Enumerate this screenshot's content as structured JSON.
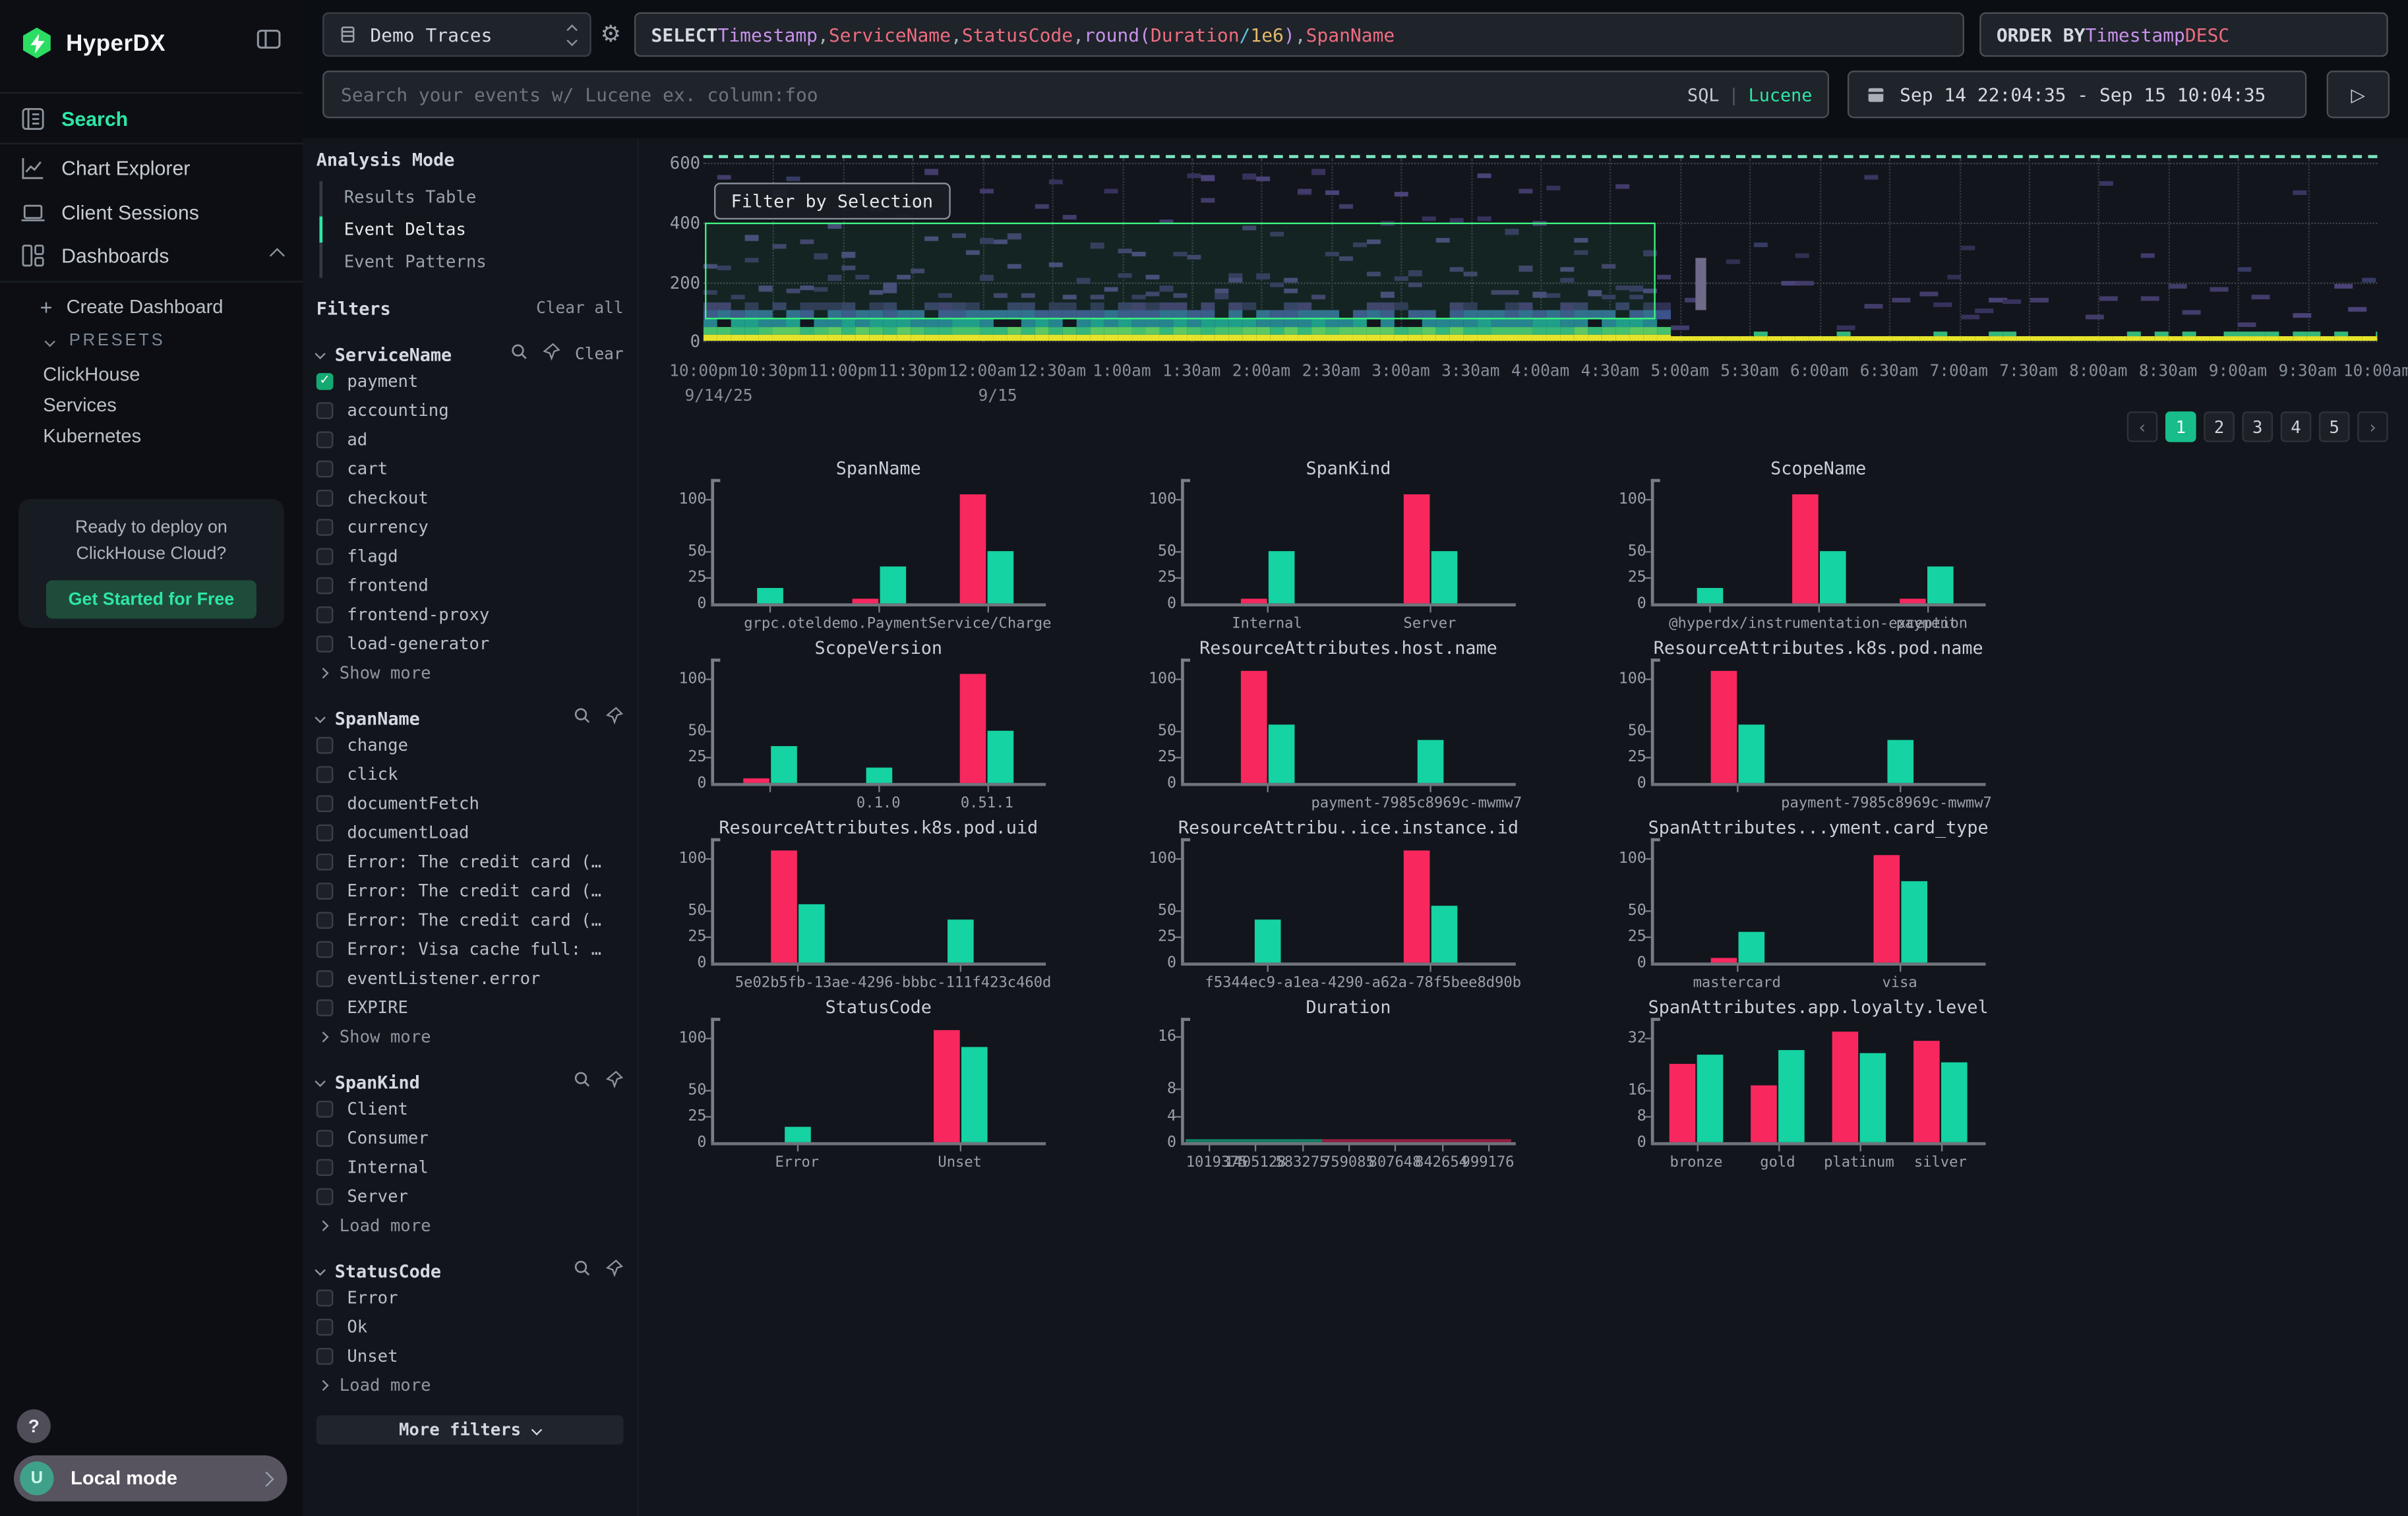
{
  "colors": {
    "accent_green": "#2EE6A6",
    "bar_pink": "#F8285F",
    "bar_green": "#15D3A2",
    "selection_green": "#3DF57E",
    "page_active": "#18BD8B",
    "checkbox_green": "#16A873",
    "heatmap_yellow": "#E6E32B",
    "heatmap_greens": [
      "#48C16C",
      "#35B779",
      "#5EC962"
    ],
    "heatmap_teals": [
      "#1F9E89",
      "#25848E"
    ],
    "heatmap_blues": [
      "#31688E",
      "#3B528B"
    ],
    "heatmap_navies": [
      "#2F3152",
      "#363B63",
      "#413A6B"
    ],
    "heatmap_purples": [
      "#423C6A",
      "#4A4378",
      "#37325C"
    ]
  },
  "sidebar": {
    "logo": "HyperDX",
    "nav": [
      {
        "label": "Search",
        "active": true
      },
      {
        "label": "Chart Explorer"
      },
      {
        "label": "Client Sessions"
      },
      {
        "label": "Dashboards",
        "expanded": true
      }
    ],
    "create_dashboard": "Create Dashboard",
    "create_plus": "+",
    "presets_label": "PRESETS",
    "presets": [
      "ClickHouse",
      "Services",
      "Kubernetes"
    ],
    "promo": {
      "line1": "Ready to deploy on",
      "line2": "ClickHouse Cloud?",
      "cta": "Get Started for Free"
    },
    "help": "?",
    "footer": {
      "avatar": "U",
      "label": "Local mode"
    }
  },
  "topbar": {
    "source": "Demo Traces",
    "query": [
      {
        "t": "SELECT ",
        "c": "kw"
      },
      {
        "t": "Timestamp",
        "c": "type"
      },
      {
        "t": ", ",
        "c": "p"
      },
      {
        "t": "ServiceName",
        "c": "field"
      },
      {
        "t": ", ",
        "c": "p"
      },
      {
        "t": "StatusCode",
        "c": "field"
      },
      {
        "t": ", ",
        "c": "p"
      },
      {
        "t": "round(",
        "c": "type"
      },
      {
        "t": "Duration",
        "c": "field"
      },
      {
        "t": " / ",
        "c": "op"
      },
      {
        "t": "1e6",
        "c": "num"
      },
      {
        "t": ")",
        "c": "type"
      },
      {
        "t": ", ",
        "c": "p"
      },
      {
        "t": "SpanName",
        "c": "field"
      }
    ],
    "order_by": [
      {
        "t": "ORDER BY ",
        "c": "kw"
      },
      {
        "t": "Timestamp ",
        "c": "type"
      },
      {
        "t": "DESC",
        "c": "field"
      }
    ],
    "search_placeholder": "Search your events w/ Lucene ex. column:foo",
    "lang": {
      "sql": "SQL",
      "divider": "|",
      "lucene": "Lucene"
    },
    "date_range": "Sep 14 22:04:35 - Sep 15 10:04:35",
    "play": "▷"
  },
  "analysis_mode": {
    "title": "Analysis Mode",
    "modes": [
      {
        "label": "Results Table",
        "active": false
      },
      {
        "label": "Event Deltas",
        "active": true
      },
      {
        "label": "Event Patterns",
        "active": false
      }
    ]
  },
  "filters": {
    "title": "Filters",
    "clear_all": "Clear all",
    "more_filters": "More filters",
    "groups": [
      {
        "name": "ServiceName",
        "clear_label": "Clear",
        "more": "Show more",
        "options": [
          {
            "label": "payment",
            "checked": true
          },
          {
            "label": "accounting"
          },
          {
            "label": "ad"
          },
          {
            "label": "cart"
          },
          {
            "label": "checkout"
          },
          {
            "label": "currency"
          },
          {
            "label": "flagd"
          },
          {
            "label": "frontend"
          },
          {
            "label": "frontend-proxy"
          },
          {
            "label": "load-generator"
          }
        ]
      },
      {
        "name": "SpanName",
        "more": "Show more",
        "options": [
          {
            "label": "change"
          },
          {
            "label": "click"
          },
          {
            "label": "documentFetch"
          },
          {
            "label": "documentLoad"
          },
          {
            "label": "Error: The credit card (…"
          },
          {
            "label": "Error: The credit card (…"
          },
          {
            "label": "Error: The credit card (…"
          },
          {
            "label": "Error: Visa cache full: …"
          },
          {
            "label": "eventListener.error"
          },
          {
            "label": "EXPIRE"
          }
        ]
      },
      {
        "name": "SpanKind",
        "more": "Load more",
        "options": [
          {
            "label": "Client"
          },
          {
            "label": "Consumer"
          },
          {
            "label": "Internal"
          },
          {
            "label": "Server"
          }
        ]
      },
      {
        "name": "StatusCode",
        "more": "Load more",
        "options": [
          {
            "label": "Error"
          },
          {
            "label": "Ok"
          },
          {
            "label": "Unset"
          }
        ]
      }
    ]
  },
  "pagination": {
    "prev": "‹",
    "pages": [
      "1",
      "2",
      "3",
      "4",
      "5"
    ],
    "active": "1",
    "next": "›"
  },
  "chart_data": [
    {
      "type": "heatmap",
      "title": "",
      "filter_button": "Filter by Selection",
      "yticks": [
        600,
        400,
        200,
        0
      ],
      "xticks": [
        "10:00pm",
        "10:30pm",
        "11:00pm",
        "11:30pm",
        "12:00am",
        "12:30am",
        "1:00am",
        "1:30am",
        "2:00am",
        "2:30am",
        "3:00am",
        "3:30am",
        "4:00am",
        "4:30am",
        "5:00am",
        "5:30am",
        "6:00am",
        "6:30am",
        "7:00am",
        "7:30am",
        "8:00am",
        "8:30am",
        "9:00am",
        "9:30am",
        "10:00am"
      ],
      "x_dates": [
        {
          "label": "9/14/25",
          "tick": 0
        },
        {
          "label": "9/15",
          "tick": 4
        }
      ],
      "ylim": [
        0,
        600
      ],
      "selection": {
        "x_from_label": "10:00pm",
        "x_to_between": [
          "4:30am",
          "5:00am"
        ],
        "y_from": 75,
        "y_to": 400
      },
      "description": "Event deltas duration heatmap: dense yellow/green/teal band near 0, scattered purple cells up to ~500; data dense left of ~4:50am (selected), sparse after"
    },
    {
      "type": "bar",
      "title": "SpanName",
      "yticks": [
        100,
        50,
        25,
        0
      ],
      "ymax": 112,
      "groups": [
        {
          "label": "",
          "bars": [
            {
              "series": "green",
              "value": 15
            }
          ]
        },
        {
          "label": "",
          "bars": [
            {
              "series": "pink",
              "value": 4
            },
            {
              "series": "green",
              "value": 35
            }
          ]
        },
        {
          "label": "grpc.oteldemo.PaymentService/Charge",
          "bars": [
            {
              "series": "pink",
              "value": 105
            },
            {
              "series": "green",
              "value": 50
            }
          ]
        }
      ]
    },
    {
      "type": "bar",
      "title": "SpanKind",
      "yticks": [
        100,
        50,
        25,
        0
      ],
      "ymax": 112,
      "groups": [
        {
          "label": "Internal",
          "bars": [
            {
              "series": "pink",
              "value": 4
            },
            {
              "series": "green",
              "value": 50
            }
          ]
        },
        {
          "label": "Server",
          "bars": [
            {
              "series": "pink",
              "value": 105
            },
            {
              "series": "green",
              "value": 50
            }
          ]
        }
      ]
    },
    {
      "type": "bar",
      "title": "ScopeName",
      "yticks": [
        100,
        50,
        25,
        0
      ],
      "ymax": 112,
      "groups": [
        {
          "label": "",
          "bars": [
            {
              "series": "green",
              "value": 15
            }
          ]
        },
        {
          "label": "@hyperdx/instrumentation-exception",
          "bars": [
            {
              "series": "pink",
              "value": 105
            },
            {
              "series": "green",
              "value": 50
            }
          ]
        },
        {
          "label": "payment",
          "bars": [
            {
              "series": "pink",
              "value": 4
            },
            {
              "series": "green",
              "value": 35
            }
          ]
        }
      ]
    },
    {
      "type": "bar",
      "title": "ScopeVersion",
      "yticks": [
        100,
        50,
        25,
        0
      ],
      "ymax": 112,
      "groups": [
        {
          "label": "",
          "bars": [
            {
              "series": "pink",
              "value": 4
            },
            {
              "series": "green",
              "value": 35
            }
          ]
        },
        {
          "label": "0.1.0",
          "bars": [
            {
              "series": "green",
              "value": 15
            }
          ]
        },
        {
          "label": "0.51.1",
          "bars": [
            {
              "series": "pink",
              "value": 105
            },
            {
              "series": "green",
              "value": 50
            }
          ]
        }
      ]
    },
    {
      "type": "bar",
      "title": "ResourceAttributes.host.name",
      "yticks": [
        100,
        50,
        25,
        0
      ],
      "ymax": 112,
      "groups": [
        {
          "label": "",
          "bars": [
            {
              "series": "pink",
              "value": 107
            },
            {
              "series": "green",
              "value": 56
            }
          ]
        },
        {
          "label": "payment-7985c8969c-mwmw7",
          "bars": [
            {
              "series": "green",
              "value": 42
            }
          ]
        }
      ]
    },
    {
      "type": "bar",
      "title": "ResourceAttributes.k8s.pod.name",
      "yticks": [
        100,
        50,
        25,
        0
      ],
      "ymax": 112,
      "groups": [
        {
          "label": "",
          "bars": [
            {
              "series": "pink",
              "value": 107
            },
            {
              "series": "green",
              "value": 56
            }
          ]
        },
        {
          "label": "payment-7985c8969c-mwmw7",
          "bars": [
            {
              "series": "green",
              "value": 42
            }
          ]
        }
      ]
    },
    {
      "type": "bar",
      "title": "ResourceAttributes.k8s.pod.uid",
      "yticks": [
        100,
        50,
        25,
        0
      ],
      "ymax": 112,
      "groups": [
        {
          "label": "",
          "bars": [
            {
              "series": "pink",
              "value": 107
            },
            {
              "series": "green",
              "value": 56
            }
          ]
        },
        {
          "label": "5e02b5fb-13ae-4296-bbbc-111f423c460d",
          "bars": [
            {
              "series": "green",
              "value": 42
            }
          ]
        }
      ]
    },
    {
      "type": "bar",
      "title": "ResourceAttribu..ice.instance.id",
      "yticks": [
        100,
        50,
        25,
        0
      ],
      "ymax": 112,
      "groups": [
        {
          "label": "",
          "bars": [
            {
              "series": "green",
              "value": 42
            }
          ]
        },
        {
          "label": "f5344ec9-a1ea-4290-a62a-78f5bee8d90b",
          "bars": [
            {
              "series": "pink",
              "value": 107
            },
            {
              "series": "green",
              "value": 55
            }
          ]
        }
      ]
    },
    {
      "type": "bar",
      "title": "SpanAttributes...yment.card_type",
      "yticks": [
        100,
        50,
        25,
        0
      ],
      "ymax": 112,
      "groups": [
        {
          "label": "mastercard",
          "bars": [
            {
              "series": "pink",
              "value": 4
            },
            {
              "series": "green",
              "value": 30
            }
          ]
        },
        {
          "label": "visa",
          "bars": [
            {
              "series": "pink",
              "value": 103
            },
            {
              "series": "green",
              "value": 78
            }
          ]
        }
      ]
    },
    {
      "type": "bar",
      "title": "StatusCode",
      "yticks": [
        100,
        50,
        25,
        0
      ],
      "ymax": 112,
      "groups": [
        {
          "label": "Error",
          "bars": [
            {
              "series": "green",
              "value": 15
            }
          ]
        },
        {
          "label": "Unset",
          "bars": [
            {
              "series": "pink",
              "value": 107
            },
            {
              "series": "green",
              "value": 92
            }
          ]
        }
      ]
    },
    {
      "type": "bar",
      "title": "Duration",
      "yticks": [
        16,
        8,
        4,
        0
      ],
      "ymax": 17.5,
      "groups": [
        {
          "label": "1019375",
          "bars": []
        },
        {
          "label": "1405128",
          "bars": []
        },
        {
          "label": "583275",
          "bars": []
        },
        {
          "label": "759085",
          "bars": []
        },
        {
          "label": "807648",
          "bars": []
        },
        {
          "label": "842654",
          "bars": []
        },
        {
          "label": "999176",
          "bars": []
        }
      ],
      "baseline_strip": [
        {
          "series": "green",
          "frac": 0.42
        },
        {
          "series": "pink",
          "frac": 0.58
        }
      ]
    },
    {
      "type": "bar",
      "title": "SpanAttributes.app.loyalty.level",
      "yticks": [
        32,
        16,
        8,
        0
      ],
      "ymax": 36,
      "groups": [
        {
          "label": "bronze",
          "bars": [
            {
              "series": "pink",
              "value": 24
            },
            {
              "series": "green",
              "value": 27
            }
          ]
        },
        {
          "label": "gold",
          "bars": [
            {
              "series": "pink",
              "value": 17.5
            },
            {
              "series": "green",
              "value": 28.5
            }
          ]
        },
        {
          "label": "platinum",
          "bars": [
            {
              "series": "pink",
              "value": 34
            },
            {
              "series": "green",
              "value": 27.5
            }
          ]
        },
        {
          "label": "silver",
          "bars": [
            {
              "series": "pink",
              "value": 31.5
            },
            {
              "series": "green",
              "value": 24.5
            }
          ]
        }
      ]
    }
  ]
}
